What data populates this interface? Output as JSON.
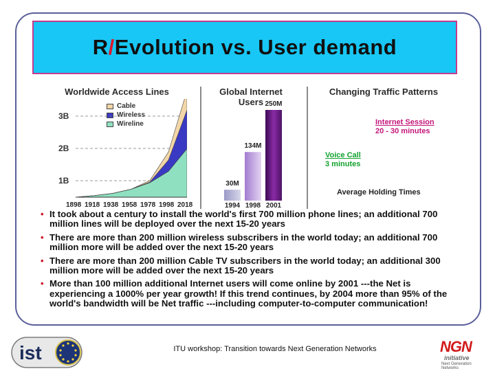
{
  "slide": {
    "title_prefix": "R",
    "title_slash": "/",
    "title_rest": "Evolution vs. User demand",
    "colors": {
      "title_bg": "#18c7f5",
      "title_border": "#c43a8e",
      "slash": "#e0142a",
      "bullet": "#d0152b"
    }
  },
  "figure": {
    "access_lines": {
      "heading": "Worldwide Access Lines",
      "y_labels": [
        "3B",
        "2B",
        "1B"
      ],
      "legend": [
        "Cable",
        "Wireless",
        "Wireline"
      ],
      "x_labels": [
        "1898",
        "1918",
        "1938",
        "1958",
        "1978",
        "1998",
        "2018"
      ]
    },
    "internet_users": {
      "heading_line1": "Global Internet",
      "heading_line2": "Users",
      "x_labels": [
        "1994",
        "1998",
        "2001"
      ],
      "value_labels": [
        "30M",
        "134M",
        "250M"
      ]
    },
    "traffic": {
      "heading": "Changing Traffic Patterns",
      "session_title": "Internet Session",
      "session_value": "20 - 30 minutes",
      "voice_title": "Voice Call",
      "voice_value": "3 minutes",
      "footer": "Average Holding Times"
    }
  },
  "chart_data": [
    {
      "type": "area",
      "title": "Worldwide Access Lines",
      "x": [
        1898,
        1918,
        1938,
        1958,
        1978,
        1998,
        2018
      ],
      "ylim": [
        0,
        3.3
      ],
      "y_unit": "B",
      "series": [
        {
          "name": "Wireline",
          "values": [
            0.0,
            0.05,
            0.12,
            0.25,
            0.45,
            0.8,
            1.5
          ]
        },
        {
          "name": "Wireless",
          "values": [
            0.0,
            0.0,
            0.0,
            0.0,
            0.02,
            0.35,
            1.2
          ]
        },
        {
          "name": "Cable",
          "values": [
            0.0,
            0.0,
            0.0,
            0.0,
            0.05,
            0.25,
            0.6
          ]
        }
      ]
    },
    {
      "type": "bar",
      "title": "Global Internet Users",
      "categories": [
        "1994",
        "1998",
        "2001"
      ],
      "values": [
        30,
        134,
        250
      ],
      "y_unit": "M",
      "ylim": [
        0,
        250
      ]
    }
  ],
  "bullets": [
    "It took about a century to install the world's first 700 million phone lines; an additional 700 million lines will be deployed over the next 15-20 years",
    "There are more than 200 million wireless subscribers in the world today; an additional 700 million more will be added over the next 15-20 years",
    "There are more than 200 million Cable TV subscribers in the world today; an additional 300 million more will be added over the next 15-20 years",
    "More than 100 million additional Internet users will come online by 2001 ---the Net is experiencing a 1000% per year growth! If this trend continues, by 2004 more than 95% of the world's bandwidth will be Net traffic ---including computer-to-computer communication!"
  ],
  "bullet_symbol": "•",
  "footer": {
    "text": "ITU workshop: Transition towards Next Generation Networks",
    "logo_left": "ist",
    "logo_right": "NGN",
    "logo_right_sub1": "initiative",
    "logo_right_sub2": "Next Generation Networks"
  }
}
